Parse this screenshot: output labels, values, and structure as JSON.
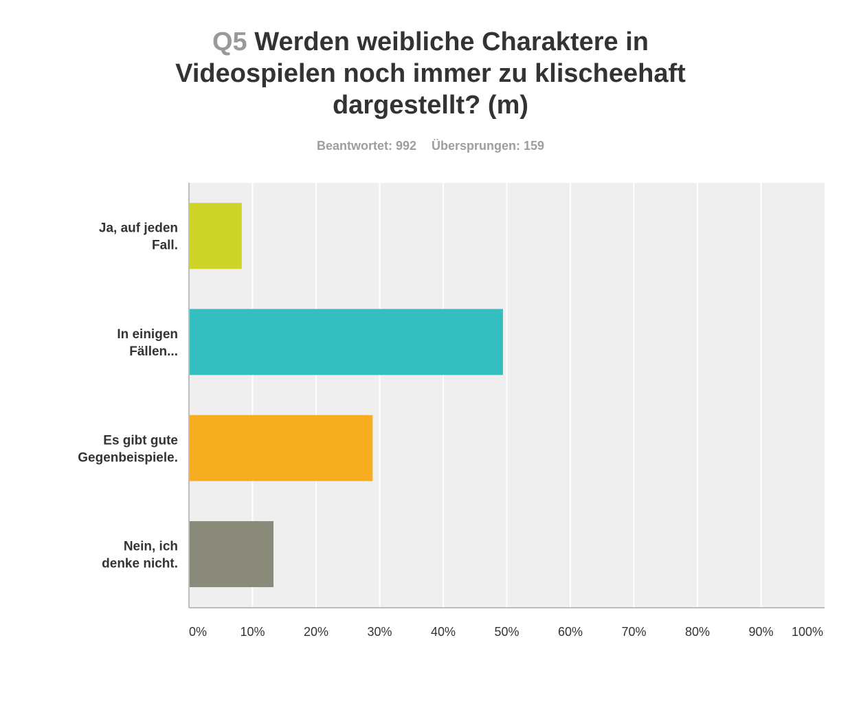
{
  "header": {
    "question_number": "Q5",
    "question_text": "Werden weibliche Charaktere in Videospielen noch immer zu klischeehaft dargestellt? (m)",
    "answered_label": "Beantwortet: 992",
    "skipped_label": "Übersprungen: 159"
  },
  "chart_data": {
    "type": "bar",
    "orientation": "horizontal",
    "title": "Q5 Werden weibliche Charaktere in Videospielen noch immer zu klischeehaft dargestellt? (m)",
    "categories": [
      [
        "Ja, auf jeden",
        "Fall."
      ],
      [
        "In einigen",
        "Fällen..."
      ],
      [
        "Es gibt gute",
        "Gegenbeispiele."
      ],
      [
        "Nein, ich",
        "denke nicht."
      ]
    ],
    "values": [
      8.3,
      49.4,
      28.9,
      13.3
    ],
    "colors": [
      "#ccd428",
      "#34bec0",
      "#f6ae20",
      "#898a79"
    ],
    "xlim": [
      0,
      100
    ],
    "xticks": [
      "0%",
      "10%",
      "20%",
      "30%",
      "40%",
      "50%",
      "60%",
      "70%",
      "80%",
      "90%",
      "100%"
    ],
    "grid": true,
    "background": "#efefef"
  }
}
